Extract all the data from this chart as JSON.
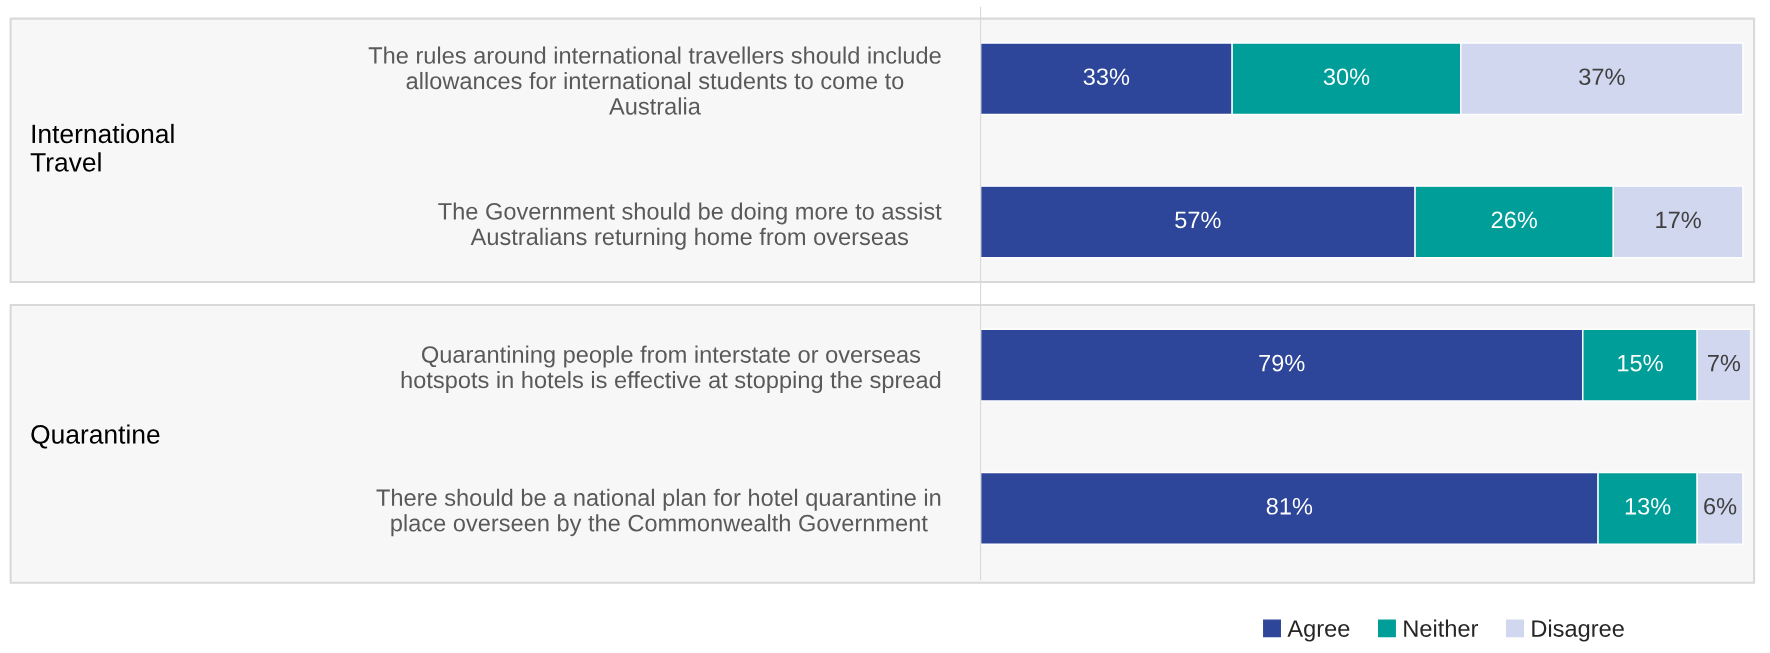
{
  "chart_data": {
    "type": "bar",
    "orientation": "horizontal",
    "stacked": true,
    "legend": "bottom right",
    "grid": false,
    "tick_labels": "y",
    "categories": [
      "The rules around international travellers should include\nallowances for international students to come to\nAustralia",
      "The Government should be doing more to assist\nAustralians returning home from overseas",
      "Quarantining people from interstate or overseas\nhotspots in hotels is effective at stopping the spread",
      "There should be a national plan for hotel quarantine in\nplace overseen by the Commonwealth Government"
    ],
    "series": [
      {
        "name": "Agree",
        "color": "#2e4699",
        "values": [
          33,
          57,
          79,
          81
        ],
        "value_labels": [
          "33%",
          "57%",
          "79%",
          "81%"
        ]
      },
      {
        "name": "Neither",
        "color": "#009e99",
        "values": [
          30,
          26,
          15,
          13
        ],
        "value_labels": [
          "30%",
          "26%",
          "15%",
          "13%"
        ]
      },
      {
        "name": "Disagree",
        "color": "#d0d7ee",
        "values": [
          37,
          17,
          7,
          6
        ],
        "value_labels": [
          "37%",
          "17%",
          "7%",
          "6%"
        ]
      }
    ],
    "annotations": [
      "International\nTravel",
      "Quarantine"
    ],
    "bands": [
      {
        "axis": "y",
        "from": "The rules around international travellers should include\nallowances for international students to come to\nAustralia",
        "to": "The Government should be doing more to assist\nAustralians returning home from overseas",
        "color": "#f7f7f7"
      },
      {
        "axis": "y",
        "from": "Quarantining people from interstate or overseas\nhotspots in hotels is effective at stopping the spread",
        "to": "There should be a national plan for hotel quarantine in\nplace overseen by the Commonwealth Government",
        "color": "#f7f7f7"
      }
    ]
  }
}
